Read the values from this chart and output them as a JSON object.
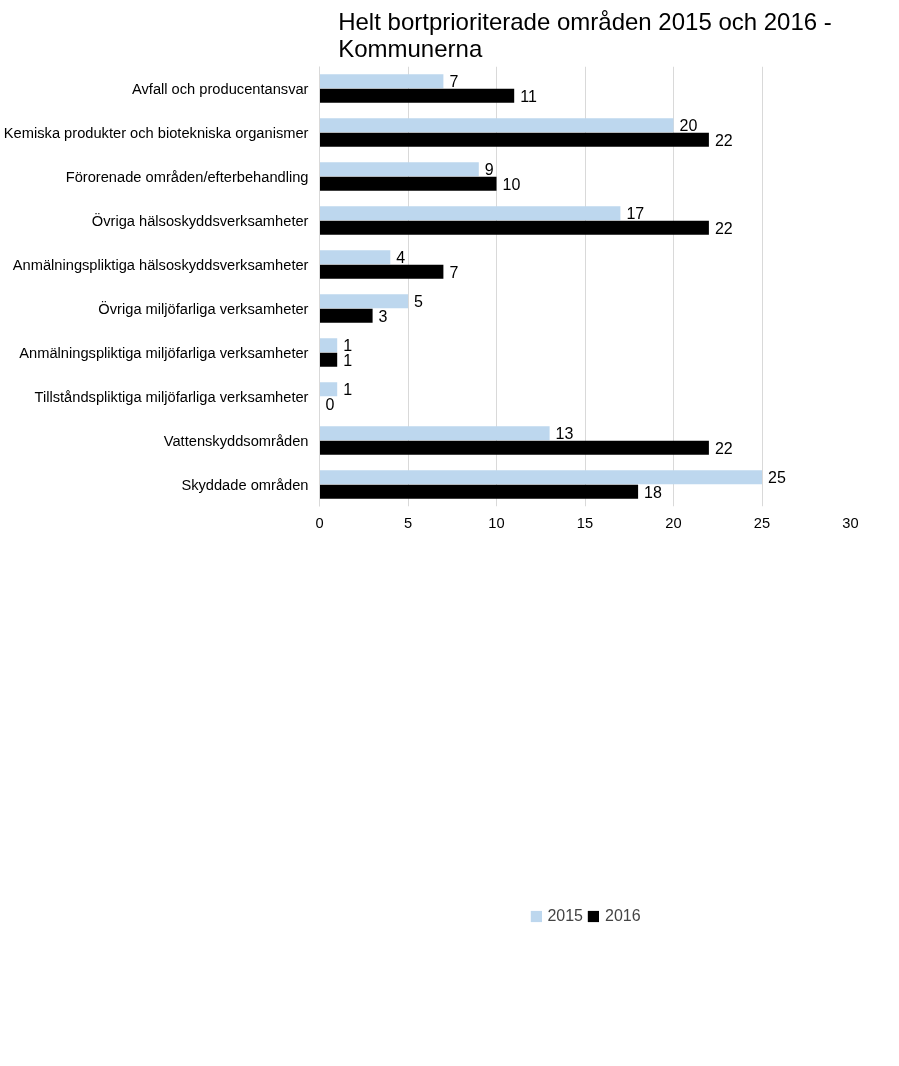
{
  "chart_data": {
    "type": "bar",
    "orientation": "horizontal",
    "title": "Helt bortprioriterade områden 2015 och 2016 - Kommunerna",
    "categories": [
      "Avfall och producentansvar",
      "Kemiska produkter och biotekniska organismer",
      "Förorenade områden/efterbehandling",
      "Övriga hälsoskyddsverksamheter",
      "Anmälningspliktiga hälsoskyddsverksamheter",
      "Övriga miljöfarliga verksamheter",
      "Anmälningspliktiga miljöfarliga verksamheter",
      "Tillståndspliktiga miljöfarliga verksamheter",
      "Vattenskyddsområden",
      "Skyddade områden"
    ],
    "series": [
      {
        "name": "2015",
        "color": "#bdd7ee",
        "values": [
          7,
          20,
          9,
          17,
          4,
          5,
          1,
          1,
          13,
          25
        ]
      },
      {
        "name": "2016",
        "color": "#000000",
        "values": [
          11,
          22,
          10,
          22,
          7,
          3,
          1,
          0,
          22,
          18
        ]
      }
    ],
    "xlim": [
      0,
      30
    ],
    "xticks": [
      0,
      5,
      10,
      15,
      20,
      25,
      30
    ],
    "grid": "x",
    "legend": "bottom",
    "data_labels": true
  }
}
